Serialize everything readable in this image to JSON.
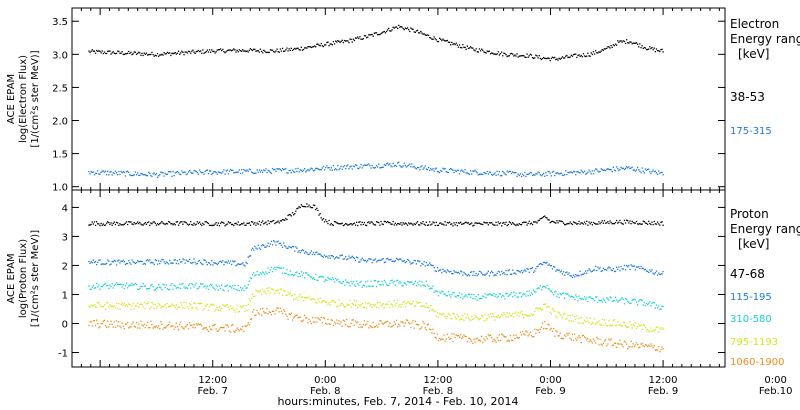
{
  "chart_data": [
    {
      "type": "scatter",
      "ylabel_lines": [
        "ACE EPAM",
        "log(Electron Flux)",
        "[1/(cm²s ster MeV)]"
      ],
      "ylim": [
        0.95,
        3.7
      ],
      "yticks": [
        1.0,
        1.5,
        2.0,
        2.5,
        3.0,
        3.5
      ],
      "ytick_labels": [
        "1.0",
        "1.5",
        "2.0",
        "2.5",
        "3.0",
        "3.5"
      ],
      "legend_title": [
        "Electron",
        "Energy range",
        "[keV]"
      ],
      "series": [
        {
          "name": "38-53",
          "color": "#000000",
          "points": [
            [
              -1.1,
              3.04
            ],
            [
              -0.8,
              3.02
            ],
            [
              -0.5,
              3.0
            ],
            [
              -0.2,
              3.03
            ],
            [
              0.0,
              3.05
            ],
            [
              0.3,
              3.06
            ],
            [
              0.55,
              3.05
            ],
            [
              0.75,
              3.08
            ],
            [
              0.9,
              3.12
            ],
            [
              1.0,
              3.15
            ],
            [
              1.2,
              3.2
            ],
            [
              1.4,
              3.28
            ],
            [
              1.55,
              3.36
            ],
            [
              1.65,
              3.42
            ],
            [
              1.8,
              3.35
            ],
            [
              2.0,
              3.22
            ],
            [
              2.3,
              3.08
            ],
            [
              2.6,
              3.0
            ],
            [
              2.8,
              2.98
            ],
            [
              2.95,
              2.94
            ],
            [
              3.05,
              2.93
            ],
            [
              3.2,
              2.97
            ],
            [
              3.35,
              3.0
            ],
            [
              3.5,
              3.08
            ],
            [
              3.6,
              3.18
            ],
            [
              3.7,
              3.2
            ],
            [
              3.85,
              3.1
            ],
            [
              3.95,
              3.06
            ],
            [
              4.0,
              3.05
            ]
          ]
        },
        {
          "name": "175-315",
          "color": "#1e78dc",
          "points": [
            [
              -1.1,
              1.22
            ],
            [
              -0.8,
              1.2
            ],
            [
              -0.5,
              1.18
            ],
            [
              -0.2,
              1.21
            ],
            [
              0.0,
              1.22
            ],
            [
              0.3,
              1.23
            ],
            [
              0.55,
              1.24
            ],
            [
              0.75,
              1.25
            ],
            [
              1.0,
              1.28
            ],
            [
              1.2,
              1.3
            ],
            [
              1.45,
              1.32
            ],
            [
              1.65,
              1.34
            ],
            [
              1.8,
              1.3
            ],
            [
              2.0,
              1.25
            ],
            [
              2.3,
              1.22
            ],
            [
              2.6,
              1.2
            ],
            [
              2.8,
              1.18
            ],
            [
              3.05,
              1.2
            ],
            [
              3.3,
              1.22
            ],
            [
              3.55,
              1.26
            ],
            [
              3.7,
              1.28
            ],
            [
              3.85,
              1.24
            ],
            [
              4.0,
              1.2
            ]
          ]
        }
      ]
    },
    {
      "type": "scatter",
      "ylabel_lines": [
        "ACE EPAM",
        "log(Proton Flux)",
        "[1/(cm²s ster MeV)]"
      ],
      "ylim": [
        -1.5,
        4.6
      ],
      "yticks": [
        -1,
        0,
        1,
        2,
        3,
        4
      ],
      "ytick_labels": [
        "-1",
        "0",
        "1",
        "2",
        "3",
        "4"
      ],
      "legend_title": [
        "Proton",
        "Energy range",
        "[keV]"
      ],
      "series": [
        {
          "name": "47-68",
          "color": "#000000",
          "points": [
            [
              -1.1,
              3.45
            ],
            [
              -0.8,
              3.44
            ],
            [
              -0.5,
              3.45
            ],
            [
              -0.2,
              3.45
            ],
            [
              0.0,
              3.44
            ],
            [
              0.3,
              3.44
            ],
            [
              0.6,
              3.5
            ],
            [
              0.72,
              3.8
            ],
            [
              0.8,
              4.1
            ],
            [
              0.9,
              4.05
            ],
            [
              0.98,
              3.6
            ],
            [
              1.05,
              3.45
            ],
            [
              1.3,
              3.44
            ],
            [
              1.6,
              3.45
            ],
            [
              2.0,
              3.44
            ],
            [
              2.5,
              3.43
            ],
            [
              2.8,
              3.45
            ],
            [
              2.9,
              3.5
            ],
            [
              2.95,
              3.7
            ],
            [
              3.0,
              3.5
            ],
            [
              3.3,
              3.45
            ],
            [
              3.6,
              3.5
            ],
            [
              3.8,
              3.48
            ],
            [
              4.0,
              3.45
            ]
          ]
        },
        {
          "name": "115-195",
          "color": "#1e78dc",
          "points": [
            [
              -1.1,
              2.12
            ],
            [
              -0.8,
              2.1
            ],
            [
              -0.5,
              2.12
            ],
            [
              -0.2,
              2.15
            ],
            [
              0.0,
              2.1
            ],
            [
              0.3,
              2.05
            ],
            [
              0.35,
              2.55
            ],
            [
              0.55,
              2.8
            ],
            [
              0.7,
              2.6
            ],
            [
              0.85,
              2.45
            ],
            [
              1.0,
              2.35
            ],
            [
              1.2,
              2.25
            ],
            [
              1.4,
              2.15
            ],
            [
              1.6,
              2.2
            ],
            [
              1.9,
              2.05
            ],
            [
              2.0,
              1.85
            ],
            [
              2.3,
              1.7
            ],
            [
              2.6,
              1.75
            ],
            [
              2.85,
              1.85
            ],
            [
              2.95,
              2.1
            ],
            [
              3.05,
              1.85
            ],
            [
              3.2,
              1.65
            ],
            [
              3.4,
              1.9
            ],
            [
              3.55,
              1.85
            ],
            [
              3.7,
              1.95
            ],
            [
              3.85,
              1.85
            ],
            [
              4.0,
              1.7
            ]
          ]
        },
        {
          "name": "310-580",
          "color": "#19d2d2",
          "points": [
            [
              -1.1,
              1.28
            ],
            [
              -0.8,
              1.3
            ],
            [
              -0.5,
              1.25
            ],
            [
              -0.2,
              1.3
            ],
            [
              0.0,
              1.25
            ],
            [
              0.3,
              1.2
            ],
            [
              0.35,
              1.65
            ],
            [
              0.55,
              1.9
            ],
            [
              0.7,
              1.75
            ],
            [
              0.9,
              1.6
            ],
            [
              1.1,
              1.45
            ],
            [
              1.3,
              1.35
            ],
            [
              1.6,
              1.4
            ],
            [
              1.9,
              1.35
            ],
            [
              2.0,
              1.05
            ],
            [
              2.3,
              0.9
            ],
            [
              2.6,
              0.95
            ],
            [
              2.85,
              1.05
            ],
            [
              2.95,
              1.35
            ],
            [
              3.05,
              1.0
            ],
            [
              3.3,
              0.85
            ],
            [
              3.6,
              0.8
            ],
            [
              3.85,
              0.7
            ],
            [
              4.0,
              0.55
            ]
          ]
        },
        {
          "name": "795-1193",
          "color": "#d2e61e",
          "points": [
            [
              -1.1,
              0.62
            ],
            [
              -0.8,
              0.6
            ],
            [
              -0.5,
              0.62
            ],
            [
              -0.2,
              0.62
            ],
            [
              0.0,
              0.55
            ],
            [
              0.3,
              0.5
            ],
            [
              0.35,
              1.0
            ],
            [
              0.55,
              1.15
            ],
            [
              0.7,
              0.95
            ],
            [
              0.9,
              0.8
            ],
            [
              1.1,
              0.7
            ],
            [
              1.4,
              0.65
            ],
            [
              1.7,
              0.68
            ],
            [
              1.9,
              0.6
            ],
            [
              2.0,
              0.3
            ],
            [
              2.3,
              0.2
            ],
            [
              2.6,
              0.25
            ],
            [
              2.85,
              0.35
            ],
            [
              2.95,
              0.65
            ],
            [
              3.05,
              0.3
            ],
            [
              3.3,
              0.1
            ],
            [
              3.6,
              0.0
            ],
            [
              3.85,
              -0.15
            ],
            [
              4.0,
              -0.25
            ]
          ]
        },
        {
          "name": "1060-1900",
          "color": "#f08c1e",
          "points": [
            [
              -1.1,
              0.0
            ],
            [
              -0.8,
              -0.05
            ],
            [
              -0.5,
              -0.05
            ],
            [
              -0.2,
              -0.1
            ],
            [
              0.0,
              -0.15
            ],
            [
              0.3,
              -0.2
            ],
            [
              0.35,
              0.35
            ],
            [
              0.55,
              0.45
            ],
            [
              0.7,
              0.25
            ],
            [
              0.9,
              0.1
            ],
            [
              1.1,
              0.05
            ],
            [
              1.4,
              -0.05
            ],
            [
              1.7,
              0.0
            ],
            [
              1.9,
              -0.1
            ],
            [
              2.0,
              -0.45
            ],
            [
              2.3,
              -0.55
            ],
            [
              2.6,
              -0.5
            ],
            [
              2.85,
              -0.35
            ],
            [
              2.95,
              -0.05
            ],
            [
              3.05,
              -0.35
            ],
            [
              3.3,
              -0.55
            ],
            [
              3.6,
              -0.7
            ],
            [
              3.85,
              -0.8
            ],
            [
              4.0,
              -0.85
            ]
          ]
        }
      ]
    }
  ],
  "x_axis": {
    "range_days": [
      -1.25,
      4.55
    ],
    "ticks": [
      {
        "day": 0,
        "time": "12:00",
        "date": "Feb. 7"
      },
      {
        "day": 1,
        "time": "0:00",
        "date": "Feb. 8"
      },
      {
        "day": 2,
        "time": "12:00",
        "date": "Feb. 8"
      },
      {
        "day": 3,
        "time": "0:00",
        "date": "Feb. 9"
      },
      {
        "day": 4,
        "time": "12:00",
        "date": "Feb. 9"
      },
      {
        "day": 5,
        "time": "0:00",
        "date": "Feb.10"
      }
    ],
    "label": "hours:minutes, Feb.  7, 2014 - Feb. 10, 2014"
  }
}
